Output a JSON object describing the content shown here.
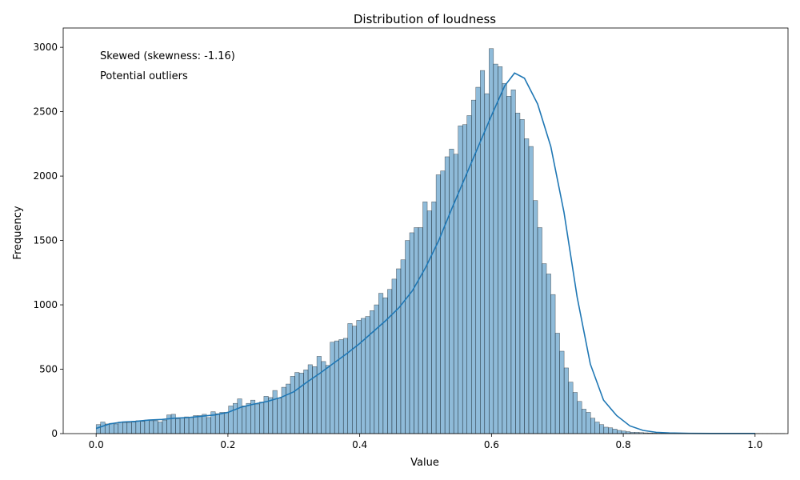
{
  "chart_data": {
    "type": "bar",
    "title": "Distribution of loudness",
    "xlabel": "Value",
    "ylabel": "Frequency",
    "xlim": [
      -0.05,
      1.05
    ],
    "ylim": [
      0,
      3150
    ],
    "xticks": [
      0.0,
      0.2,
      0.4,
      0.6,
      0.8,
      1.0
    ],
    "xtick_labels": [
      "0.0",
      "0.2",
      "0.4",
      "0.6",
      "0.8",
      "1.0"
    ],
    "yticks": [
      0,
      500,
      1000,
      1500,
      2000,
      2500,
      3000
    ],
    "ytick_labels": [
      "0",
      "500",
      "1000",
      "1500",
      "2000",
      "2500",
      "3000"
    ],
    "grid": false,
    "annotations": [
      "Skewed (skewness: -1.16)",
      "Potential outliers"
    ],
    "bar_color": "#1f77b4",
    "bar_fill_opacity": 0.5,
    "kde_color": "#1f77b4",
    "bins": {
      "start": 0.0,
      "width": 0.0067,
      "values": [
        70,
        90,
        75,
        80,
        75,
        90,
        85,
        85,
        90,
        100,
        95,
        105,
        100,
        100,
        90,
        105,
        145,
        150,
        115,
        120,
        130,
        125,
        140,
        140,
        150,
        125,
        170,
        155,
        165,
        165,
        215,
        235,
        270,
        215,
        235,
        260,
        230,
        245,
        290,
        280,
        335,
        275,
        360,
        385,
        445,
        475,
        470,
        495,
        535,
        520,
        600,
        560,
        530,
        710,
        720,
        730,
        740,
        855,
        835,
        880,
        895,
        910,
        955,
        1000,
        1090,
        1055,
        1120,
        1200,
        1280,
        1350,
        1500,
        1560,
        1600,
        1600,
        1800,
        1730,
        1800,
        2010,
        2040,
        2150,
        2210,
        2170,
        2390,
        2400,
        2470,
        2590,
        2690,
        2820,
        2640,
        2990,
        2870,
        2850,
        2720,
        2620,
        2670,
        2490,
        2440,
        2290,
        2230,
        1810,
        1600,
        1320,
        1240,
        1080,
        780,
        640,
        510,
        400,
        320,
        250,
        190,
        165,
        120,
        90,
        70,
        50,
        45,
        35,
        25,
        20,
        15,
        10,
        10,
        8,
        6,
        5,
        4,
        3,
        3,
        2,
        2,
        1,
        1,
        1,
        1,
        1,
        1,
        1,
        1,
        1,
        1,
        1,
        1,
        1,
        1,
        1,
        1,
        1,
        1,
        1,
        1,
        1,
        1,
        1,
        1,
        1
      ]
    },
    "kde": {
      "x": [
        0.0,
        0.02,
        0.04,
        0.06,
        0.08,
        0.1,
        0.12,
        0.14,
        0.16,
        0.18,
        0.2,
        0.22,
        0.24,
        0.26,
        0.28,
        0.3,
        0.32,
        0.34,
        0.36,
        0.38,
        0.4,
        0.42,
        0.44,
        0.46,
        0.48,
        0.5,
        0.52,
        0.54,
        0.56,
        0.58,
        0.6,
        0.62,
        0.635,
        0.65,
        0.67,
        0.69,
        0.71,
        0.73,
        0.75,
        0.77,
        0.79,
        0.81,
        0.83,
        0.85,
        0.87,
        0.9,
        0.95,
        1.0
      ],
      "y": [
        40,
        75,
        90,
        95,
        105,
        110,
        120,
        125,
        135,
        145,
        165,
        205,
        230,
        250,
        280,
        325,
        400,
        470,
        545,
        620,
        700,
        790,
        880,
        980,
        1110,
        1290,
        1500,
        1750,
        1990,
        2230,
        2470,
        2700,
        2800,
        2760,
        2560,
        2230,
        1720,
        1060,
        540,
        260,
        140,
        60,
        25,
        10,
        5,
        2,
        1,
        1
      ]
    }
  }
}
